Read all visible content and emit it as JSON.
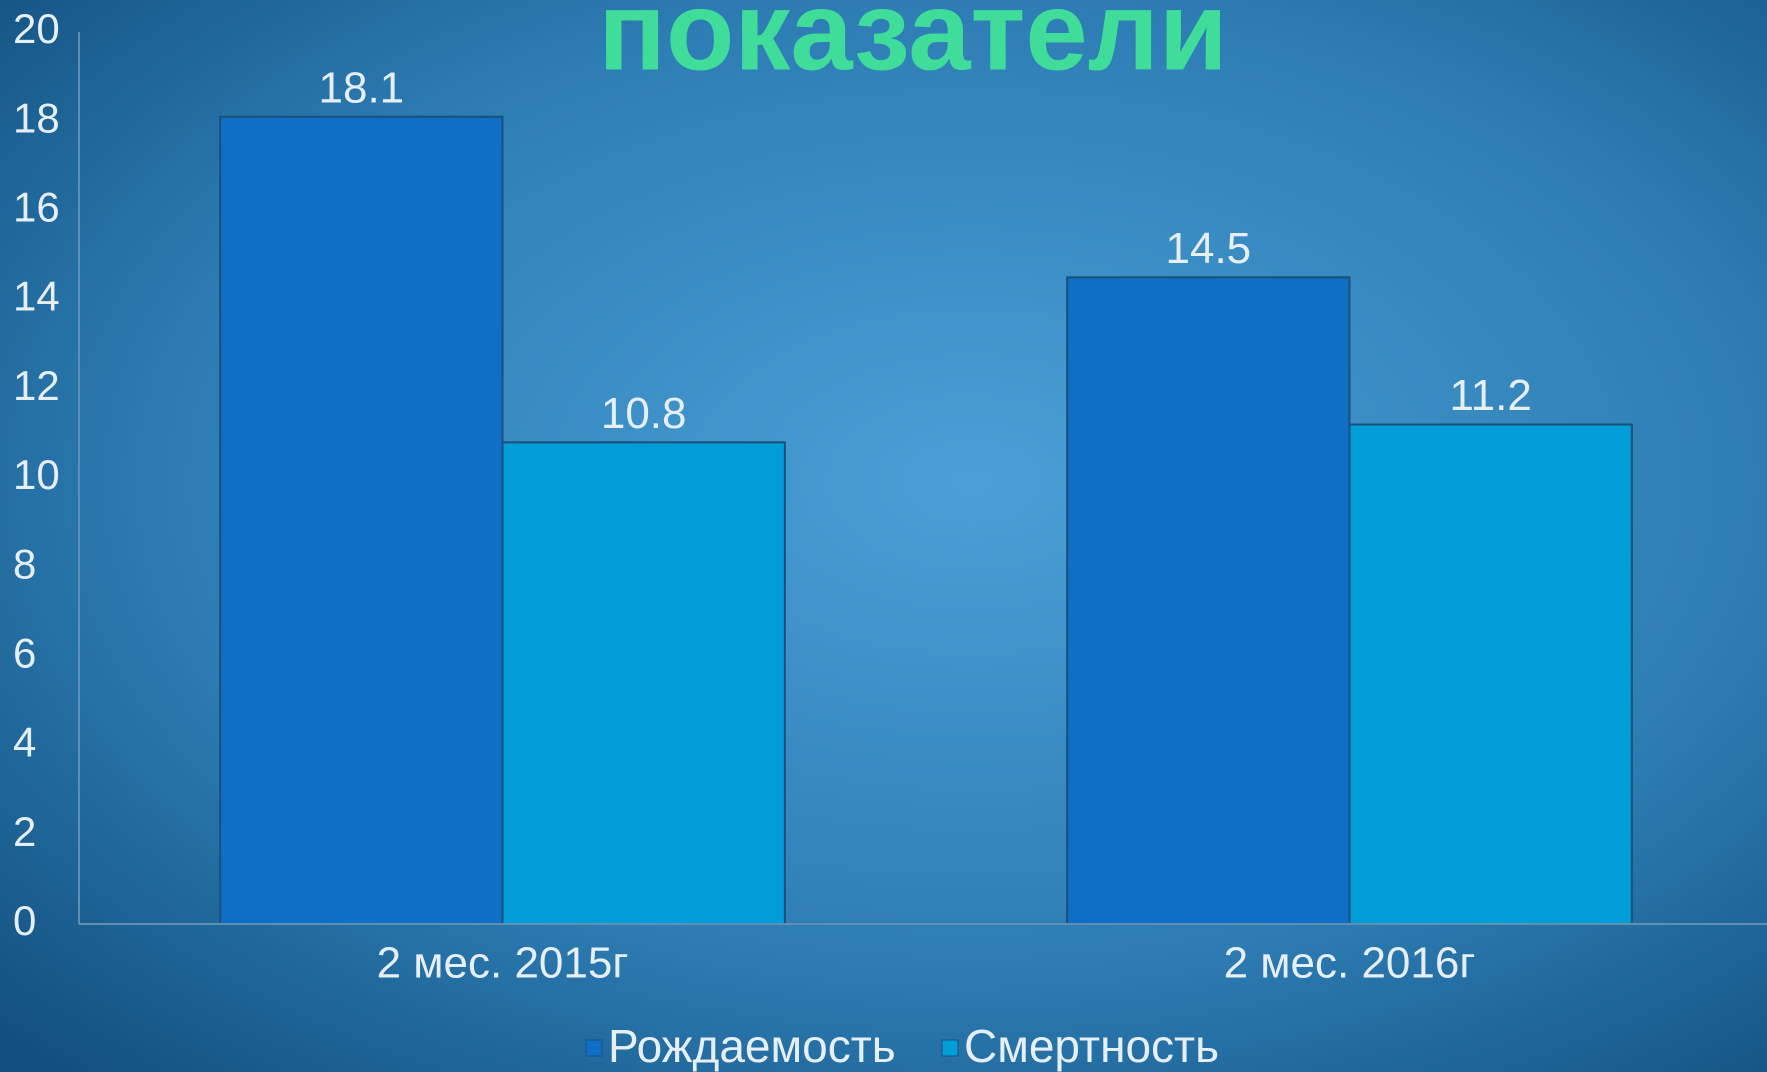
{
  "chart_data": {
    "type": "bar",
    "title": "показатели",
    "categories": [
      "2 мес. 2015г",
      "2 мес. 2016г"
    ],
    "series": [
      {
        "name": "Рождаемость",
        "color": "#0f6fc6",
        "values": [
          18.1,
          14.5
        ]
      },
      {
        "name": "Смертность",
        "color": "#009dd9",
        "values": [
          10.8,
          11.2
        ]
      }
    ],
    "ylim": [
      0,
      20
    ],
    "yticks": [
      0,
      2,
      4,
      6,
      8,
      10,
      12,
      14,
      16,
      18,
      20
    ],
    "grid": false,
    "legend": "bottom"
  }
}
